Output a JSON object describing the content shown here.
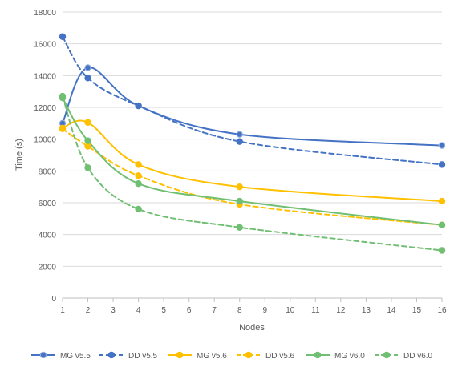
{
  "chart_data": {
    "type": "line",
    "title": "",
    "xlabel": "Nodes",
    "ylabel": "Time (s)",
    "x_ticks": [
      1,
      2,
      3,
      4,
      5,
      6,
      7,
      8,
      9,
      10,
      11,
      12,
      13,
      14,
      15,
      16
    ],
    "y_ticks": [
      0,
      2000,
      4000,
      6000,
      8000,
      10000,
      12000,
      14000,
      16000,
      18000
    ],
    "xlim": [
      1,
      16
    ],
    "ylim": [
      0,
      18000
    ],
    "grid": "horizontal",
    "legend_position": "bottom",
    "series": [
      {
        "name": "MG v5.5",
        "color": "#4472C4",
        "dashed": false,
        "marker_outline": "#8FAADC",
        "x": [
          1,
          2,
          4,
          8,
          16
        ],
        "y": [
          11000,
          14500,
          12100,
          10300,
          9600
        ]
      },
      {
        "name": "DD v5.5",
        "color": "#4472C4",
        "dashed": true,
        "marker_outline": "#4472C4",
        "x": [
          1,
          2,
          4,
          8,
          16
        ],
        "y": [
          16450,
          13850,
          12100,
          9850,
          8400
        ]
      },
      {
        "name": "MG v5.6",
        "color": "#FFC000",
        "dashed": false,
        "marker_outline": "#FFC000",
        "x": [
          1,
          2,
          4,
          8,
          16
        ],
        "y": [
          10700,
          11050,
          8400,
          7000,
          6100
        ]
      },
      {
        "name": "DD v5.6",
        "color": "#FFC000",
        "dashed": true,
        "marker_outline": "#FFC000",
        "x": [
          1,
          2,
          4,
          8,
          16
        ],
        "y": [
          10650,
          9550,
          7700,
          5900,
          4600
        ]
      },
      {
        "name": "MG v6.0",
        "color": "#70BF73",
        "dashed": false,
        "marker_outline": "#70BF73",
        "x": [
          1,
          2,
          4,
          8,
          16
        ],
        "y": [
          12600,
          9900,
          7200,
          6100,
          4600
        ]
      },
      {
        "name": "DD v6.0",
        "color": "#70BF73",
        "dashed": true,
        "marker_outline": "#70BF73",
        "x": [
          1,
          2,
          4,
          8,
          16
        ],
        "y": [
          12700,
          8200,
          5600,
          4450,
          3000
        ]
      }
    ]
  }
}
